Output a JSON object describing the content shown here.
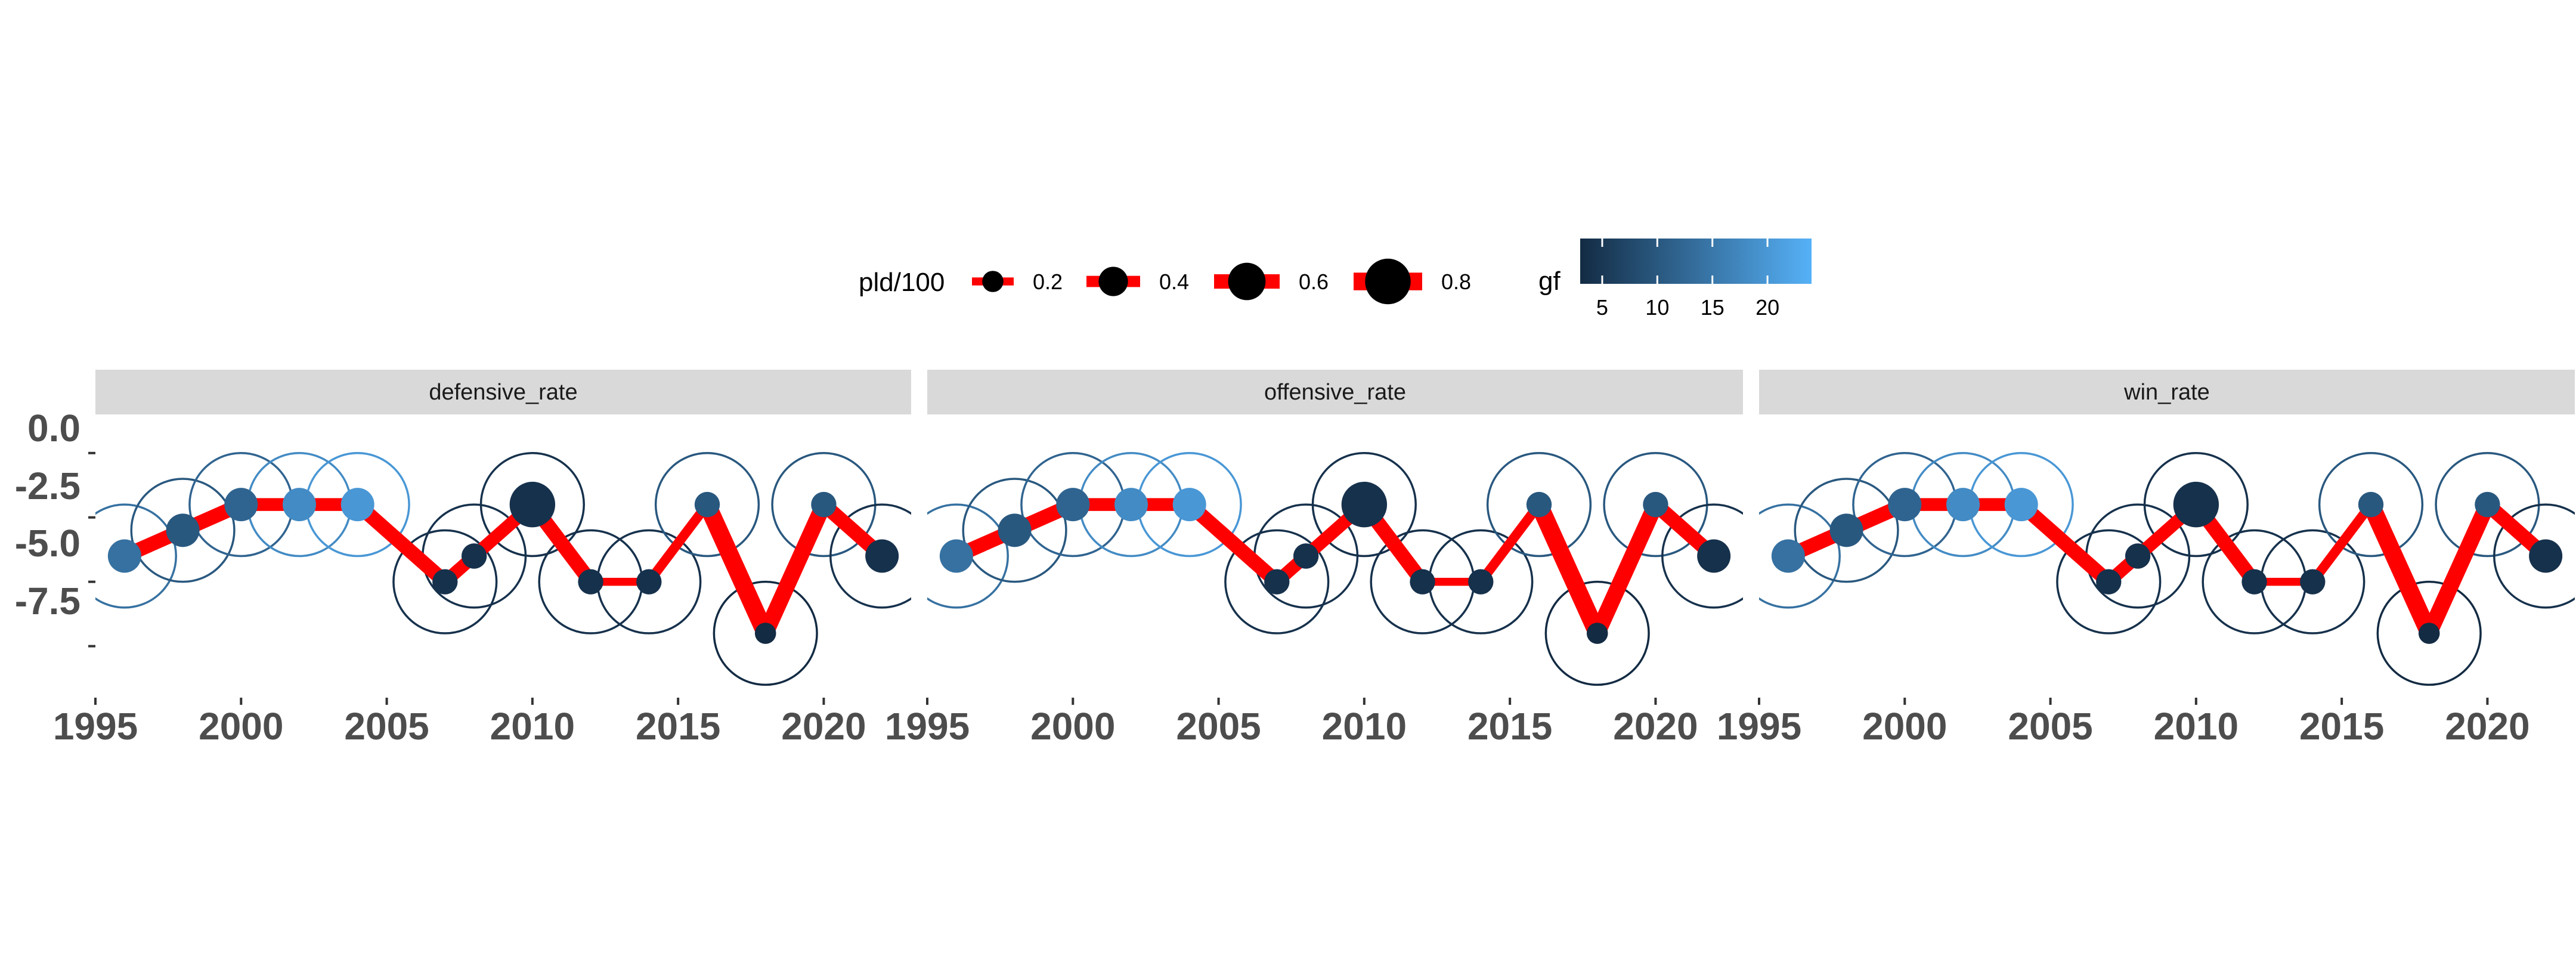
{
  "chart_data": {
    "type": "line",
    "facets": [
      "defensive_rate",
      "offensive_rate",
      "win_rate"
    ],
    "x": [
      1996,
      1998,
      2000,
      2002,
      2004,
      2007,
      2008,
      2010,
      2012,
      2014,
      2016,
      2018,
      2020,
      2022
    ],
    "y": [
      -4.0,
      -3.0,
      -2.0,
      -2.0,
      -2.0,
      -5.0,
      -4.0,
      -2.0,
      -5.0,
      -5.0,
      -2.0,
      -7.0,
      -2.0,
      -4.0
    ],
    "gf": [
      14,
      10,
      12,
      18,
      20,
      4,
      4,
      4,
      4,
      4,
      10,
      3,
      10,
      4
    ],
    "pld_over_100": [
      0.5,
      0.5,
      0.5,
      0.5,
      0.5,
      0.3,
      0.3,
      0.8,
      0.3,
      0.3,
      0.3,
      0.2,
      0.3,
      0.5
    ],
    "segment_pld_over_100": [
      0.6,
      0.6,
      0.5,
      0.5,
      0.6,
      0.5,
      0.5,
      0.6,
      0.2,
      0.3,
      0.8,
      0.7,
      0.6
    ],
    "xlim": [
      1995,
      2023
    ],
    "ylim": [
      -9.5,
      1.5
    ],
    "x_ticks": [
      1995,
      2000,
      2005,
      2010,
      2015,
      2020
    ],
    "x_tick_labels": [
      "1995",
      "2000",
      "2005",
      "2010",
      "2015",
      "2020"
    ],
    "y_ticks": [
      0,
      -2.5,
      -5,
      -7.5
    ],
    "y_tick_labels": [
      "0.0",
      "-2.5",
      "-5.0",
      "-7.5"
    ],
    "ring_radius": 2,
    "line_color": "#ff0000",
    "legend_position": "top",
    "legends": {
      "size": {
        "title": "pld/100",
        "values": [
          0.2,
          0.4,
          0.6,
          0.8
        ],
        "labels": [
          "0.2",
          "0.4",
          "0.6",
          "0.8"
        ]
      },
      "color": {
        "title": "gf",
        "range": [
          3,
          24
        ],
        "ticks": [
          5,
          10,
          15,
          20
        ],
        "tick_labels": [
          "5",
          "10",
          "15",
          "20"
        ],
        "low_color": "#132b43",
        "high_color": "#56b1f7"
      }
    },
    "strip_background": "#d9d9d9"
  }
}
